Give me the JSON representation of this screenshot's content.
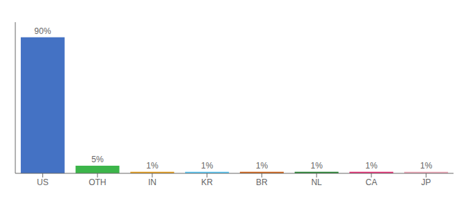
{
  "chart_data": {
    "type": "bar",
    "categories": [
      "US",
      "OTH",
      "IN",
      "KR",
      "BR",
      "NL",
      "CA",
      "JP"
    ],
    "values": [
      90,
      5,
      1,
      1,
      1,
      1,
      1,
      1
    ],
    "value_labels": [
      "90%",
      "5%",
      "1%",
      "1%",
      "1%",
      "1%",
      "1%",
      "1%"
    ],
    "data_labels": true,
    "colors": [
      "#4472C4",
      "#3CB54A",
      "#E8A020",
      "#5BC8F5",
      "#D4681E",
      "#2E8B3A",
      "#E8357A",
      "#F0AABB"
    ],
    "ylim": [
      0,
      100
    ],
    "tick_labels": "x",
    "grid": false
  }
}
